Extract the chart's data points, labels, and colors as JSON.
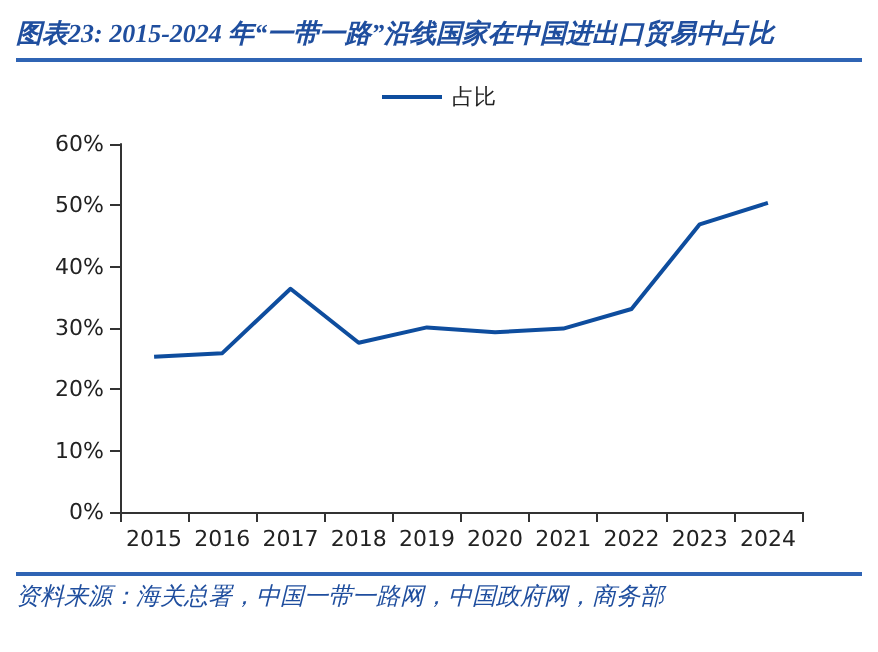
{
  "chart_data": {
    "type": "line",
    "title": "图表23: 2015-2024 年“一带一路”沿线国家在中国进出口贸易中占比",
    "categories": [
      "2015",
      "2016",
      "2017",
      "2018",
      "2019",
      "2020",
      "2021",
      "2022",
      "2023",
      "2024"
    ],
    "series": [
      {
        "name": "占比",
        "color": "#0e4d9e",
        "values": [
          0.253,
          0.259,
          0.364,
          0.276,
          0.301,
          0.293,
          0.299,
          0.331,
          0.469,
          0.504
        ]
      }
    ],
    "ylim": [
      0,
      0.6
    ],
    "yticks": [
      {
        "value": 0,
        "label": "0%"
      },
      {
        "value": 0.1,
        "label": "10%"
      },
      {
        "value": 0.2,
        "label": "20%"
      },
      {
        "value": 0.3,
        "label": "30%"
      },
      {
        "value": 0.4,
        "label": "40%"
      },
      {
        "value": 0.5,
        "label": "50%"
      },
      {
        "value": 0.6,
        "label": "60%"
      }
    ],
    "legend": "top",
    "grid": false,
    "marker": "none",
    "line_style": "solid",
    "annotations": [
      "资料来源：海关总署，中国一带一路网，中国政府网，商务部"
    ]
  }
}
